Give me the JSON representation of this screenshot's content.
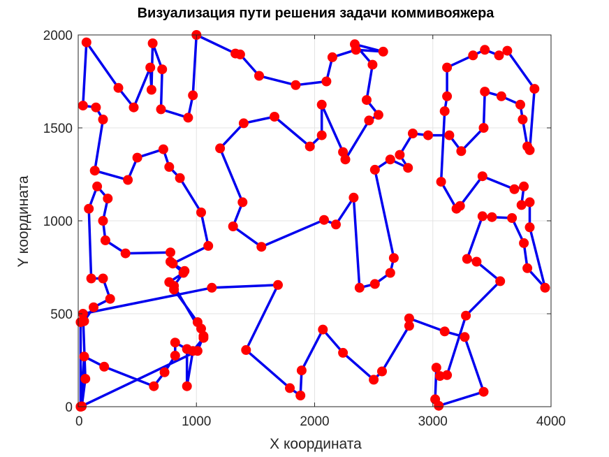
{
  "chart_data": {
    "type": "line",
    "title": "Визуализация пути решения задачи коммивояжера",
    "xlabel": "X координата",
    "ylabel": "Y координата",
    "xlim": [
      0,
      4000
    ],
    "ylim": [
      0,
      2000
    ],
    "xticks": [
      0,
      1000,
      2000,
      3000,
      4000
    ],
    "yticks": [
      0,
      500,
      1000,
      1500,
      2000
    ],
    "grid": true,
    "colors": {
      "path": "#0000ee",
      "city": "#ff0000",
      "grid": "#e3e3e3",
      "axis": "#262626"
    },
    "series": [
      {
        "marker": "circle",
        "closed": true,
        "points": [
          [
            20,
            0
          ],
          [
            50,
            270
          ],
          [
            220,
            215
          ],
          [
            640,
            110
          ],
          [
            730,
            185
          ],
          [
            820,
            275
          ],
          [
            820,
            345
          ],
          [
            920,
            310
          ],
          [
            920,
            110
          ],
          [
            970,
            300
          ],
          [
            1060,
            370
          ],
          [
            1040,
            420
          ],
          [
            1010,
            455
          ],
          [
            810,
            630
          ],
          [
            770,
            670
          ],
          [
            890,
            720
          ],
          [
            780,
            780
          ],
          [
            780,
            830
          ],
          [
            400,
            825
          ],
          [
            230,
            895
          ],
          [
            210,
            1000
          ],
          [
            250,
            1120
          ],
          [
            160,
            1185
          ],
          [
            90,
            1065
          ],
          [
            110,
            690
          ],
          [
            210,
            690
          ],
          [
            270,
            580
          ],
          [
            130,
            535
          ],
          [
            50,
            460
          ],
          [
            20,
            455
          ],
          [
            20,
            0
          ],
          [
            30,
            2
          ],
          [
            60,
            150
          ],
          [
            40,
            500
          ],
          [
            1130,
            640
          ],
          [
            1690,
            655
          ],
          [
            1420,
            305
          ],
          [
            1790,
            100
          ],
          [
            1880,
            60
          ],
          [
            1890,
            195
          ],
          [
            2070,
            415
          ],
          [
            2240,
            290
          ],
          [
            2500,
            145
          ],
          [
            2570,
            190
          ],
          [
            2800,
            435
          ],
          [
            2800,
            475
          ],
          [
            3100,
            405
          ],
          [
            3270,
            375
          ],
          [
            3430,
            80
          ],
          [
            3050,
            5
          ],
          [
            3020,
            40
          ],
          [
            3030,
            210
          ],
          [
            3060,
            165
          ],
          [
            3120,
            170
          ],
          [
            3280,
            490
          ],
          [
            3570,
            675
          ],
          [
            3370,
            780
          ],
          [
            3290,
            795
          ],
          [
            3420,
            1025
          ],
          [
            3500,
            1020
          ],
          [
            3670,
            1015
          ],
          [
            3770,
            880
          ],
          [
            3800,
            745
          ],
          [
            3950,
            640
          ],
          [
            3820,
            965
          ],
          [
            3820,
            1100
          ],
          [
            3750,
            1085
          ],
          [
            3770,
            1185
          ],
          [
            3690,
            1170
          ],
          [
            3420,
            1240
          ],
          [
            3230,
            1080
          ],
          [
            3200,
            1065
          ],
          [
            3070,
            1210
          ],
          [
            3100,
            1590
          ],
          [
            3120,
            1670
          ],
          [
            3120,
            1825
          ],
          [
            3340,
            1890
          ],
          [
            3440,
            1920
          ],
          [
            3560,
            1890
          ],
          [
            3630,
            1915
          ],
          [
            3860,
            1710
          ],
          [
            3820,
            1380
          ],
          [
            3800,
            1400
          ],
          [
            3760,
            1545
          ],
          [
            3740,
            1625
          ],
          [
            3580,
            1670
          ],
          [
            3440,
            1695
          ],
          [
            3430,
            1500
          ],
          [
            3240,
            1375
          ],
          [
            3140,
            1460
          ],
          [
            2960,
            1460
          ],
          [
            2830,
            1470
          ],
          [
            2720,
            1355
          ],
          [
            2790,
            1285
          ],
          [
            2640,
            1330
          ],
          [
            2510,
            1275
          ],
          [
            2670,
            800
          ],
          [
            2640,
            720
          ],
          [
            2510,
            660
          ],
          [
            2380,
            640
          ],
          [
            2330,
            1125
          ],
          [
            2180,
            980
          ],
          [
            2080,
            1005
          ],
          [
            1550,
            860
          ],
          [
            1310,
            970
          ],
          [
            1390,
            1100
          ],
          [
            1200,
            1390
          ],
          [
            1400,
            1525
          ],
          [
            1660,
            1560
          ],
          [
            1960,
            1400
          ],
          [
            2060,
            1460
          ],
          [
            2060,
            1625
          ],
          [
            2240,
            1370
          ],
          [
            2260,
            1330
          ],
          [
            2460,
            1540
          ],
          [
            2540,
            1570
          ],
          [
            2440,
            1650
          ],
          [
            2490,
            1840
          ],
          [
            2340,
            1950
          ],
          [
            2580,
            1910
          ],
          [
            2350,
            1920
          ],
          [
            2150,
            1880
          ],
          [
            2100,
            1750
          ],
          [
            1840,
            1730
          ],
          [
            1530,
            1780
          ],
          [
            1370,
            1895
          ],
          [
            1330,
            1900
          ],
          [
            1000,
            2000
          ],
          [
            970,
            1675
          ],
          [
            930,
            1555
          ],
          [
            700,
            1600
          ],
          [
            710,
            1815
          ],
          [
            630,
            1955
          ],
          [
            620,
            1705
          ],
          [
            610,
            1825
          ],
          [
            470,
            1610
          ],
          [
            340,
            1715
          ],
          [
            70,
            1960
          ],
          [
            40,
            1620
          ],
          [
            150,
            1610
          ],
          [
            210,
            1545
          ],
          [
            140,
            1270
          ],
          [
            420,
            1220
          ],
          [
            500,
            1340
          ],
          [
            720,
            1385
          ],
          [
            770,
            1290
          ],
          [
            860,
            1230
          ],
          [
            1040,
            1045
          ],
          [
            1100,
            865
          ],
          [
            800,
            770
          ],
          [
            900,
            730
          ],
          [
            810,
            650
          ],
          [
            1060,
            380
          ],
          [
            1010,
            300
          ]
        ]
      }
    ]
  }
}
